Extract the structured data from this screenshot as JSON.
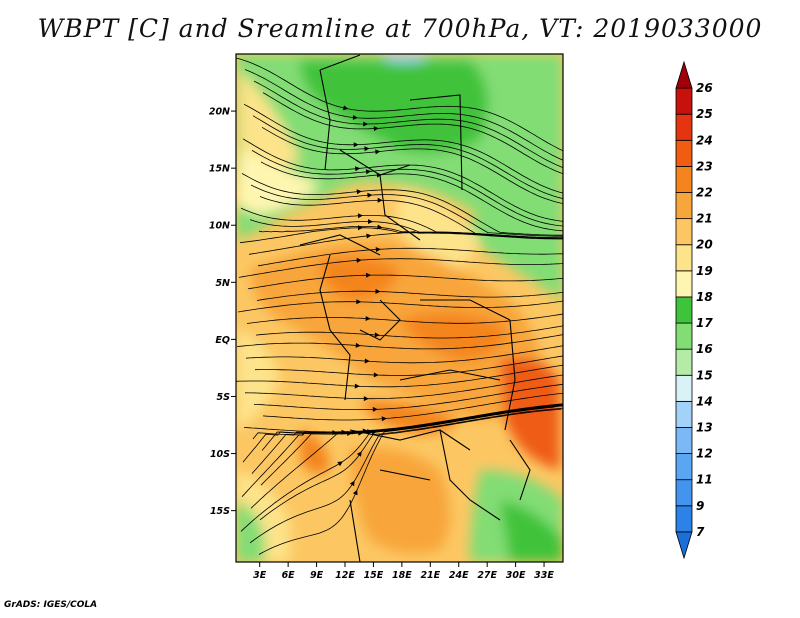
{
  "title": "WBPT [C] and Sreamline at 700hPa, VT: 2019033000",
  "footer": "GrADS: IGES/COLA",
  "map": {
    "lat_labels": [
      "20N",
      "15N",
      "10N",
      "5N",
      "EQ",
      "5S",
      "10S",
      "15S"
    ],
    "lat_values": [
      20,
      15,
      10,
      5,
      0,
      -5,
      -10,
      -15
    ],
    "lon_labels": [
      "3E",
      "6E",
      "9E",
      "12E",
      "15E",
      "18E",
      "21E",
      "24E",
      "27E",
      "30E",
      "33E"
    ],
    "lon_values": [
      3,
      6,
      9,
      12,
      15,
      18,
      21,
      24,
      27,
      30,
      33
    ],
    "lon_range": [
      0.5,
      35
    ],
    "lat_range": [
      -19.5,
      25
    ]
  },
  "colorbar": {
    "levels": [
      "7",
      "9",
      "11",
      "12",
      "13",
      "14",
      "15",
      "16",
      "17",
      "18",
      "19",
      "20",
      "21",
      "22",
      "23",
      "24",
      "25",
      "26"
    ],
    "colors": [
      "#1a6fd9",
      "#2c82e6",
      "#4294ee",
      "#5aa6f2",
      "#7ab9f5",
      "#a3d2f9",
      "#d9f2f5",
      "#b4eba7",
      "#82dd74",
      "#3fc33b",
      "#fef6b0",
      "#fde38a",
      "#fcc763",
      "#f8a63b",
      "#f4851e",
      "#ef5c12",
      "#e43510",
      "#c8100c",
      "#a10008"
    ]
  }
}
